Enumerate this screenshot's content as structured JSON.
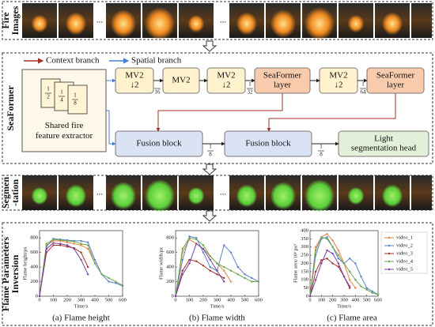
{
  "sections": {
    "images": [
      "Fire",
      "Images"
    ],
    "seaformer": [
      "SeaFormer"
    ],
    "segmentation": [
      "Segmen",
      "-tation"
    ],
    "inversion": [
      "Flame Parameters",
      "Inversion"
    ]
  },
  "ellipsis": "...",
  "legend": [
    {
      "name": "Context branch",
      "color": "#a0322a"
    },
    {
      "name": "Spatial branch",
      "color": "#4a7ccf"
    }
  ],
  "extractor": {
    "label": [
      "Shared fire",
      "feature extractor"
    ],
    "scales": [
      {
        "num": "1",
        "den": "2"
      },
      {
        "num": "1",
        "den": "4"
      },
      {
        "num": "1",
        "den": "8"
      }
    ]
  },
  "blocks": [
    [
      "MV2",
      "↓2"
    ],
    [
      "MV2"
    ],
    [
      "MV2",
      "↓2"
    ],
    [
      "SeaFormer",
      "layer"
    ],
    [
      "MV2",
      "↓2"
    ],
    [
      "SeaFormer",
      "layer"
    ]
  ],
  "block_scales": [
    {
      "num": "",
      "den": "16"
    },
    {
      "num": "1",
      "den": "32"
    },
    {
      "num": "1",
      "den": "64"
    }
  ],
  "fusion": [
    "Fusion block",
    "Fusion block"
  ],
  "fusion_scales": [
    {
      "num": "1",
      "den": "8"
    },
    {
      "num": "1",
      "den": "8"
    }
  ],
  "head": [
    "Light",
    "segmentation head"
  ],
  "chart_data": [
    {
      "type": "line",
      "caption": "(a) Flame height",
      "xlabel": "Time/s",
      "ylabel": "Flame height/px",
      "x": [
        0,
        50,
        100,
        150,
        200,
        250,
        300,
        350,
        400,
        450,
        500,
        550,
        600
      ],
      "xlim": [
        0,
        600
      ],
      "xticks": [
        0,
        100,
        200,
        300,
        400,
        500,
        600
      ],
      "ylim": [
        0,
        900
      ],
      "yticks": [
        0,
        200,
        400,
        600,
        800
      ],
      "series": [
        {
          "name": "video_1",
          "color": "#e8833a",
          "values": [
            0,
            700,
            760,
            760,
            740,
            720,
            700,
            650,
            450,
            null,
            null,
            null,
            null
          ]
        },
        {
          "name": "video_2",
          "color": "#5b7fc7",
          "values": [
            0,
            680,
            790,
            780,
            770,
            760,
            760,
            740,
            500,
            300,
            200,
            180,
            140
          ]
        },
        {
          "name": "video_3",
          "color": "#a0322a",
          "values": [
            0,
            600,
            700,
            700,
            680,
            660,
            600,
            400,
            null,
            null,
            null,
            null,
            null
          ]
        },
        {
          "name": "video_4",
          "color": "#6aa84f",
          "values": [
            0,
            720,
            780,
            770,
            760,
            750,
            720,
            700,
            450,
            300,
            250,
            200,
            150
          ]
        },
        {
          "name": "video_5",
          "color": "#7b3fa0",
          "values": [
            0,
            650,
            730,
            720,
            700,
            650,
            500,
            300,
            null,
            null,
            null,
            null,
            null
          ]
        }
      ]
    },
    {
      "type": "line",
      "caption": "(b) Flame width",
      "xlabel": "Time/s",
      "ylabel": "Flame width/px",
      "x": [
        0,
        50,
        100,
        150,
        200,
        250,
        300,
        350,
        400,
        450,
        500,
        550,
        600
      ],
      "xlim": [
        0,
        600
      ],
      "xticks": [
        0,
        100,
        200,
        300,
        400,
        500,
        600
      ],
      "ylim": [
        0,
        900
      ],
      "yticks": [
        0,
        200,
        400,
        600,
        800
      ],
      "series": [
        {
          "name": "video_1",
          "color": "#e8833a",
          "values": [
            0,
            600,
            780,
            720,
            650,
            550,
            450,
            350,
            200,
            null,
            null,
            null,
            null
          ]
        },
        {
          "name": "video_2",
          "color": "#5b7fc7",
          "values": [
            0,
            500,
            820,
            800,
            600,
            400,
            350,
            700,
            600,
            400,
            300,
            250,
            200
          ]
        },
        {
          "name": "video_3",
          "color": "#a0322a",
          "values": [
            0,
            350,
            500,
            480,
            420,
            350,
            300,
            250,
            null,
            null,
            null,
            null,
            null
          ]
        },
        {
          "name": "video_4",
          "color": "#6aa84f",
          "values": [
            0,
            650,
            800,
            780,
            700,
            550,
            450,
            400,
            350,
            300,
            250,
            200,
            200
          ]
        },
        {
          "name": "video_5",
          "color": "#7b3fa0",
          "values": [
            0,
            300,
            450,
            720,
            650,
            500,
            350,
            200,
            null,
            null,
            null,
            null,
            null
          ]
        }
      ]
    },
    {
      "type": "line",
      "caption": "(c) Flame area",
      "xlabel": "Time/s",
      "ylabel": "Flame area/10³ px²",
      "x": [
        0,
        50,
        100,
        150,
        200,
        250,
        300,
        350,
        400,
        450,
        500,
        550,
        600
      ],
      "xlim": [
        0,
        600
      ],
      "xticks": [
        0,
        100,
        200,
        300,
        400,
        500,
        600
      ],
      "ylim": [
        0,
        400
      ],
      "yticks": [
        0,
        50,
        100,
        150,
        200,
        250,
        300,
        350,
        400
      ],
      "legend": "right",
      "series": [
        {
          "name": "video_1",
          "color": "#e8833a",
          "values": [
            0,
            300,
            360,
            380,
            340,
            280,
            200,
            100,
            50,
            null,
            null,
            null,
            null
          ]
        },
        {
          "name": "video_2",
          "color": "#5b7fc7",
          "values": [
            0,
            250,
            350,
            360,
            300,
            230,
            200,
            230,
            200,
            120,
            50,
            30,
            10
          ]
        },
        {
          "name": "video_3",
          "color": "#a0322a",
          "values": [
            0,
            150,
            220,
            230,
            200,
            180,
            120,
            50,
            null,
            null,
            null,
            null,
            null
          ]
        },
        {
          "name": "video_4",
          "color": "#6aa84f",
          "values": [
            0,
            280,
            360,
            350,
            300,
            250,
            200,
            150,
            100,
            60,
            40,
            20,
            10
          ]
        },
        {
          "name": "video_5",
          "color": "#7b3fa0",
          "values": [
            0,
            100,
            200,
            280,
            260,
            200,
            120,
            60,
            null,
            null,
            null,
            null,
            null
          ]
        }
      ]
    }
  ]
}
